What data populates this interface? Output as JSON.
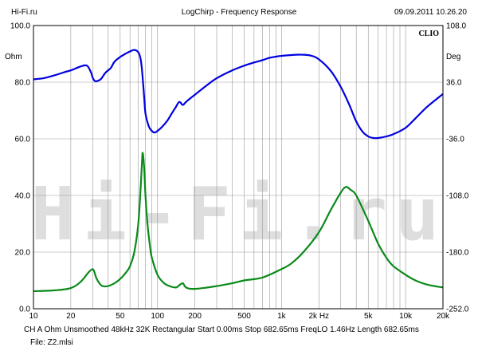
{
  "header": {
    "site": "Hi-Fi.ru",
    "title": "LogChirp - Frequency Response",
    "timestamp": "09.09.2011 10.26.20"
  },
  "brand": "CLIO",
  "watermark": "Hi-Fi.ru",
  "footer": {
    "line1": "CH A   Ohm   Unsmoothed   48kHz   32K   Rectangular   Start 0.00ms   Stop 682.65ms   FreqLO 1.46Hz   Length 682.65ms",
    "line2": "File: Z2.mlsi"
  },
  "chart_data": {
    "type": "line",
    "title": "LogChirp - Frequency Response",
    "x_scale": "log",
    "xlim": [
      10,
      20000
    ],
    "x_ticks": [
      {
        "v": 10,
        "label": "10"
      },
      {
        "v": 20,
        "label": "20"
      },
      {
        "v": 50,
        "label": "50"
      },
      {
        "v": 100,
        "label": "100"
      },
      {
        "v": 200,
        "label": "200"
      },
      {
        "v": 500,
        "label": "500"
      },
      {
        "v": 1000,
        "label": "1k"
      },
      {
        "v": 2000,
        "label": "2k Hz"
      },
      {
        "v": 5000,
        "label": "5k"
      },
      {
        "v": 10000,
        "label": "10k"
      },
      {
        "v": 20000,
        "label": "20k"
      }
    ],
    "ylim_left": [
      0,
      100
    ],
    "ylabel_left": "Ohm",
    "y_ticks_left": [
      "0.0",
      "20.0",
      "40.0",
      "60.0",
      "80.0",
      "100.0"
    ],
    "ylim_right": [
      -252,
      108
    ],
    "ylabel_right": "Deg",
    "y_ticks_right": [
      "-252.0",
      "-180.0",
      "-108.0",
      "-36.0",
      "36.0",
      "108.0"
    ],
    "grid": true,
    "series": [
      {
        "axis": "right",
        "color": "#0000e0",
        "points": [
          [
            10,
            39.6
          ],
          [
            12,
            41
          ],
          [
            15,
            45
          ],
          [
            18,
            49
          ],
          [
            20,
            51
          ],
          [
            24,
            56
          ],
          [
            27,
            57
          ],
          [
            29,
            49
          ],
          [
            30,
            42
          ],
          [
            31,
            38
          ],
          [
            32,
            37
          ],
          [
            35,
            40
          ],
          [
            38,
            48
          ],
          [
            42,
            54
          ],
          [
            45,
            62
          ],
          [
            50,
            68
          ],
          [
            55,
            72
          ],
          [
            60,
            75
          ],
          [
            65,
            77
          ],
          [
            70,
            74
          ],
          [
            73,
            66
          ],
          [
            75,
            51
          ],
          [
            78,
            18
          ],
          [
            80,
            -4
          ],
          [
            85,
            -20
          ],
          [
            90,
            -26
          ],
          [
            95,
            -28
          ],
          [
            100,
            -26
          ],
          [
            110,
            -20
          ],
          [
            120,
            -13
          ],
          [
            130,
            -4
          ],
          [
            140,
            4
          ],
          [
            150,
            11
          ],
          [
            160,
            7
          ],
          [
            170,
            11
          ],
          [
            200,
            20
          ],
          [
            250,
            32
          ],
          [
            300,
            41
          ],
          [
            400,
            51
          ],
          [
            500,
            57
          ],
          [
            600,
            61
          ],
          [
            700,
            64
          ],
          [
            800,
            67
          ],
          [
            900,
            68.5
          ],
          [
            1000,
            69.5
          ],
          [
            1200,
            70.5
          ],
          [
            1400,
            71
          ],
          [
            1700,
            70
          ],
          [
            2000,
            65
          ],
          [
            2500,
            50
          ],
          [
            3000,
            30
          ],
          [
            3500,
            8
          ],
          [
            4000,
            -14
          ],
          [
            4500,
            -27
          ],
          [
            5000,
            -33
          ],
          [
            5500,
            -35
          ],
          [
            6000,
            -35
          ],
          [
            7000,
            -33
          ],
          [
            8000,
            -30
          ],
          [
            10000,
            -22
          ],
          [
            12000,
            -10
          ],
          [
            15000,
            5
          ],
          [
            20000,
            21
          ]
        ]
      },
      {
        "axis": "left",
        "color": "#0a8a1a",
        "points": [
          [
            10,
            6.2
          ],
          [
            15,
            6.5
          ],
          [
            20,
            7.3
          ],
          [
            24,
            9.5
          ],
          [
            28,
            13
          ],
          [
            30,
            14
          ],
          [
            31,
            13
          ],
          [
            32,
            11
          ],
          [
            34,
            9
          ],
          [
            36,
            8
          ],
          [
            40,
            8
          ],
          [
            45,
            9
          ],
          [
            50,
            10.5
          ],
          [
            55,
            12.5
          ],
          [
            60,
            15
          ],
          [
            65,
            20
          ],
          [
            70,
            30
          ],
          [
            73,
            42
          ],
          [
            75,
            52
          ],
          [
            76,
            55
          ],
          [
            78,
            50
          ],
          [
            80,
            40
          ],
          [
            83,
            30
          ],
          [
            87,
            22
          ],
          [
            90,
            18
          ],
          [
            100,
            12
          ],
          [
            110,
            9.5
          ],
          [
            120,
            8.3
          ],
          [
            140,
            7.5
          ],
          [
            150,
            8.3
          ],
          [
            160,
            9
          ],
          [
            170,
            7.5
          ],
          [
            200,
            7
          ],
          [
            300,
            8
          ],
          [
            400,
            9
          ],
          [
            500,
            10
          ],
          [
            700,
            11
          ],
          [
            1000,
            14
          ],
          [
            1200,
            16
          ],
          [
            1500,
            20
          ],
          [
            2000,
            27
          ],
          [
            2500,
            35
          ],
          [
            3000,
            41
          ],
          [
            3300,
            43
          ],
          [
            3600,
            42
          ],
          [
            4000,
            40
          ],
          [
            5000,
            31
          ],
          [
            6000,
            23
          ],
          [
            7000,
            18
          ],
          [
            8000,
            15
          ],
          [
            10000,
            12
          ],
          [
            12000,
            10
          ],
          [
            15000,
            8.5
          ],
          [
            20000,
            7.5
          ]
        ]
      }
    ]
  }
}
